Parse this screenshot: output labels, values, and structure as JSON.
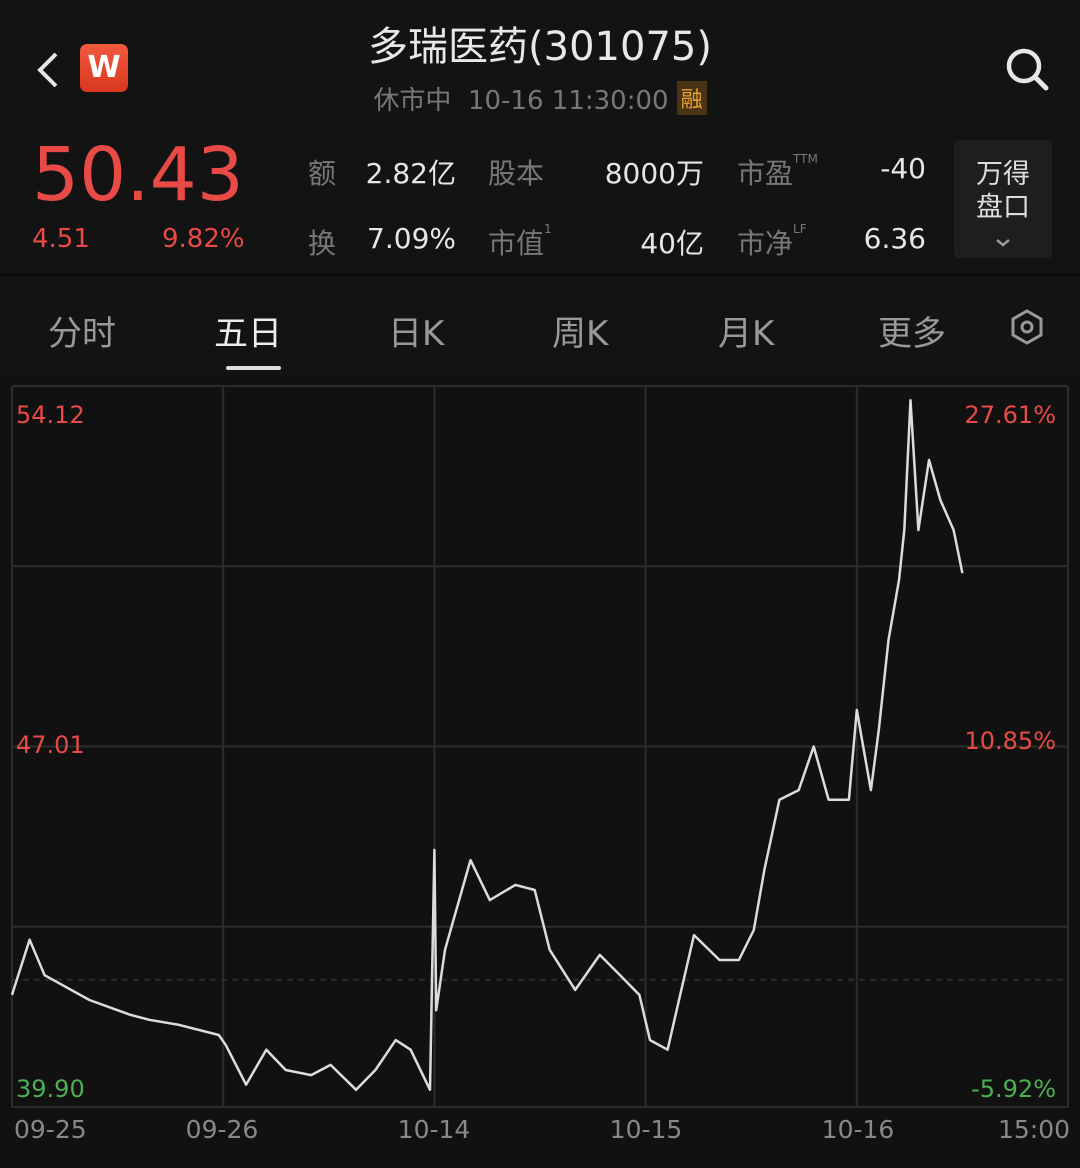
{
  "header": {
    "title": "多瑞医药(301075)",
    "status": "休市中",
    "datetime": "10-16 11:30:00",
    "margin_badge": "融",
    "logo_letter": "W",
    "back_icon": "chevron-left-icon",
    "search_icon": "search-icon"
  },
  "quote": {
    "price": "50.43",
    "change": "4.51",
    "change_pct": "9.82%",
    "color_up": "#e84a45",
    "color_down": "#4caf50"
  },
  "stats": [
    {
      "label": "额",
      "value": "2.82亿"
    },
    {
      "label": "股本",
      "value": "8000万"
    },
    {
      "label": "市盈",
      "sup": "TTM",
      "value": "-40"
    },
    {
      "label": "换",
      "value": "7.09%"
    },
    {
      "label": "市值",
      "sup": "1",
      "value": "40亿"
    },
    {
      "label": "市净",
      "sup": "LF",
      "value": "6.36"
    }
  ],
  "wind_button": {
    "line1": "万得",
    "line2": "盘口"
  },
  "tabs": [
    {
      "label": "分时"
    },
    {
      "label": "五日",
      "active": true
    },
    {
      "label": "日K"
    },
    {
      "label": "周K"
    },
    {
      "label": "月K"
    },
    {
      "label": "更多"
    }
  ],
  "chart_data": {
    "type": "line",
    "ylim": [
      39.9,
      54.12
    ],
    "left_ticks": [
      "54.12",
      "47.01",
      "39.90"
    ],
    "right_ticks": [
      "27.61%",
      "10.85%",
      "-5.92%"
    ],
    "x_labels": [
      "09-25",
      "09-26",
      "10-14",
      "10-15",
      "10-16",
      "15:00"
    ],
    "grid": true,
    "baseline": 42.41,
    "days": [
      {
        "date": "09-25",
        "points": [
          [
            "09:30",
            42.11
          ],
          [
            "09:50",
            43.2
          ],
          [
            "10:07",
            42.5
          ],
          [
            "10:58",
            42.01
          ],
          [
            "13:14",
            41.72
          ],
          [
            "13:36",
            41.62
          ],
          [
            "14:10",
            41.52
          ],
          [
            "14:55",
            41.32
          ]
        ]
      },
      {
        "date": "09-26",
        "points": [
          [
            "09:33",
            41.12
          ],
          [
            "09:56",
            40.34
          ],
          [
            "10:19",
            41.03
          ],
          [
            "10:41",
            40.63
          ],
          [
            "11:10",
            40.53
          ],
          [
            "13:02",
            40.73
          ],
          [
            "13:31",
            40.24
          ],
          [
            "13:53",
            40.63
          ],
          [
            "14:16",
            41.22
          ],
          [
            "14:33",
            41.03
          ],
          [
            "14:55",
            40.24
          ]
        ]
      },
      {
        "date": "10-14",
        "points": [
          [
            "09:30",
            44.97
          ],
          [
            "09:32",
            41.81
          ],
          [
            "09:42",
            43.0
          ],
          [
            "10:11",
            44.77
          ],
          [
            "10:33",
            43.98
          ],
          [
            "11:02",
            44.28
          ],
          [
            "11:24",
            44.18
          ],
          [
            "13:11",
            43.0
          ],
          [
            "13:40",
            42.21
          ],
          [
            "14:08",
            42.9
          ],
          [
            "14:31",
            42.5
          ],
          [
            "14:53",
            42.11
          ]
        ]
      },
      {
        "date": "10-15",
        "points": [
          [
            "09:35",
            41.22
          ],
          [
            "09:55",
            41.03
          ],
          [
            "10:08",
            42.01
          ],
          [
            "10:25",
            43.29
          ],
          [
            "10:54",
            42.8
          ],
          [
            "11:16",
            42.8
          ],
          [
            "13:03",
            43.39
          ],
          [
            "13:15",
            44.58
          ],
          [
            "13:32",
            45.96
          ],
          [
            "13:54",
            46.15
          ],
          [
            "14:11",
            47.01
          ],
          [
            "14:28",
            45.96
          ],
          [
            "14:51",
            45.96
          ]
        ]
      },
      {
        "date": "10-16",
        "points": [
          [
            "09:30",
            47.73
          ],
          [
            "09:38",
            46.94
          ],
          [
            "09:46",
            46.15
          ],
          [
            "09:55",
            47.34
          ],
          [
            "10:06",
            49.11
          ],
          [
            "10:18",
            50.29
          ],
          [
            "10:24",
            51.28
          ],
          [
            "10:31",
            53.84
          ],
          [
            "10:40",
            51.28
          ],
          [
            "10:52",
            52.66
          ],
          [
            "11:05",
            51.87
          ],
          [
            "11:20",
            51.28
          ],
          [
            "11:30",
            50.43
          ]
        ]
      }
    ]
  }
}
